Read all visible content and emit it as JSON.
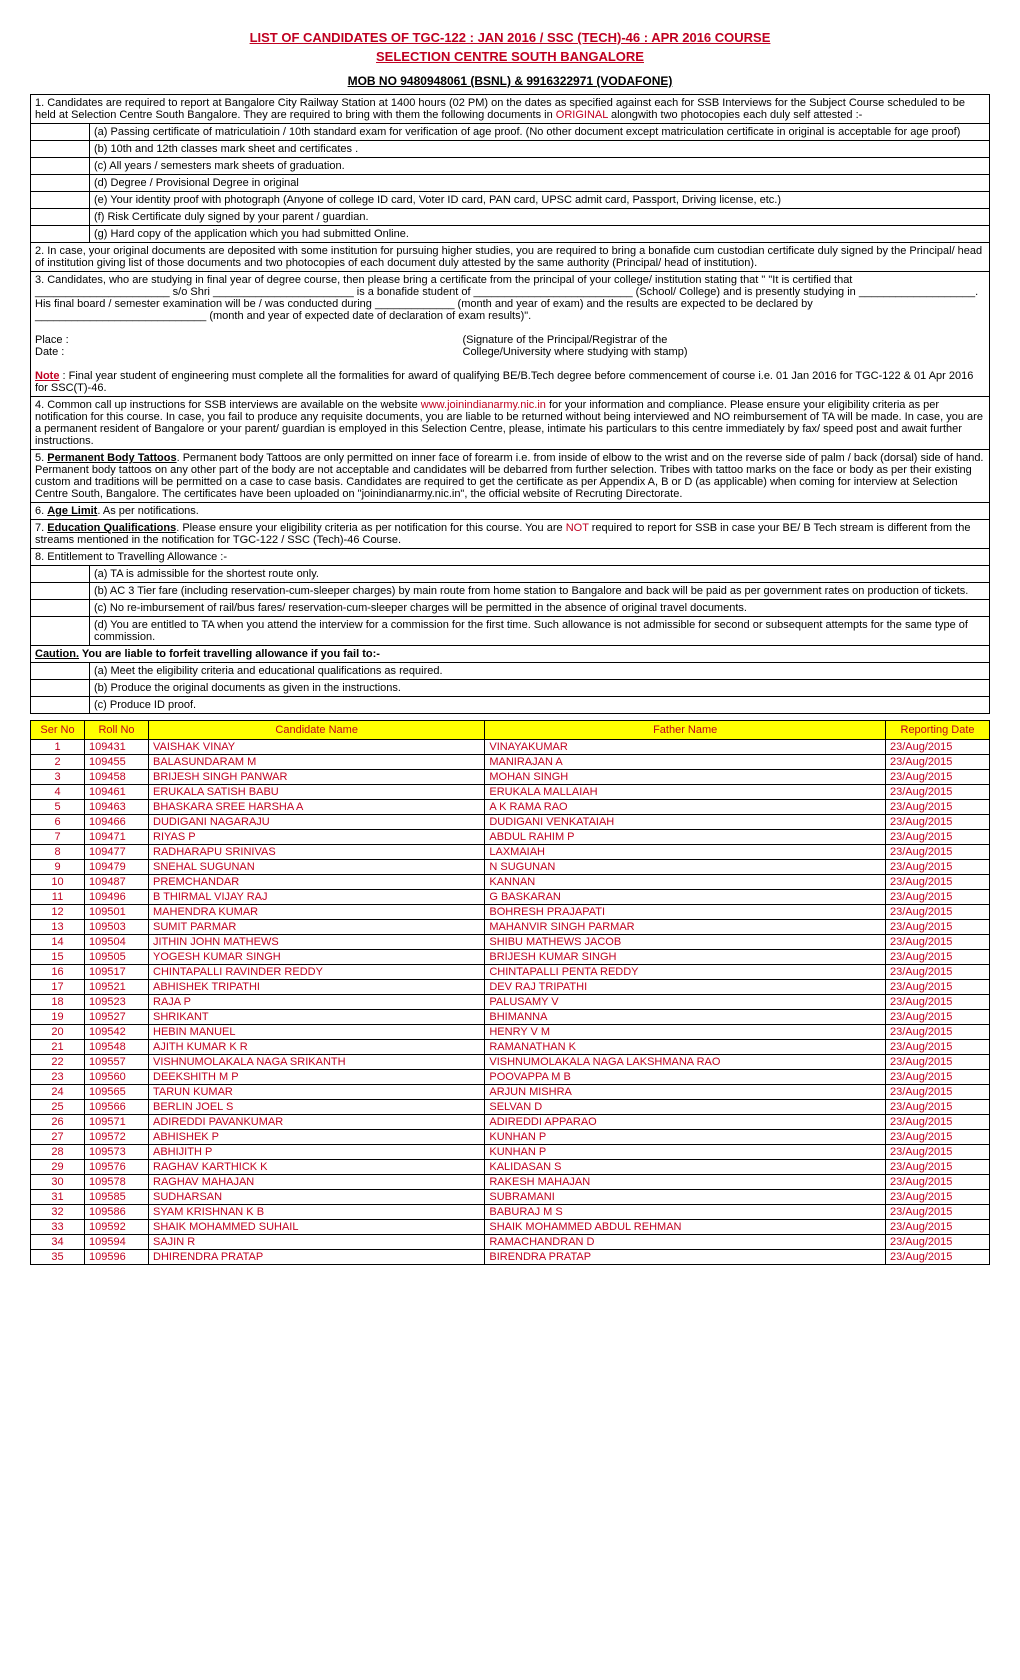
{
  "header": {
    "title": "LIST OF CANDIDATES OF TGC-122 : JAN 2016 / SSC (TECH)-46 : APR 2016 COURSE",
    "subtitle": "SELECTION CENTRE SOUTH BANGALORE",
    "mob": "MOB NO 9480948061 (BSNL) & 9916322971 (VODAFONE)"
  },
  "instr": {
    "p1_pre": "1.    Candidates are required to report at Bangalore City Railway Station at 1400 hours (02 PM) on the dates as specified against each for SSB Interviews for the Subject Course scheduled to be held at Selection Centre South Bangalore. They are required to bring with them the following documents in ",
    "p1_red": "ORIGINAL",
    "p1_post": " alongwith two photocopies each duly self attested :-",
    "docs": {
      "a": "(a)    Passing certificate of matriculatioin / 10th standard exam for verification of age proof.  (No other document except matriculation certificate in original is acceptable for age proof)",
      "b": "(b)    10th and 12th classes mark sheet and certificates .",
      "c": "(c)    All years / semesters mark sheets of graduation.",
      "d": "(d)    Degree / Provisional Degree in original",
      "e": "(e)    Your identity proof with photograph (Anyone of college ID card, Voter ID card, PAN card, UPSC admit card, Passport, Driving license, etc.)",
      "f": "(f)     Risk Certificate duly signed by your parent / guardian.",
      "g": "(g)    Hard copy of the application which you had submitted Online."
    },
    "p2": "2.     In case, your original documents are deposited with some institution for pursuing higher studies, you are required to bring a bonafide cum custodian certificate duly signed by the Principal/ head of institution giving list of those documents and two photocopies of each document duly attested by the same authority (Principal/ head of institution).",
    "p3": "3.  Candidates, who are studying in final year of degree course, then please bring a certificate from the principal of your college/ institution stating that \" \"It is certified that ______________________ s/o Shri _______________________ is a bonafide student of __________________________ (School/ College) and is presently studying in ___________________. His final board / semester examination will be / was conducted during _____________ (month and year of exam) and the results are expected to be declared by ____________________________ (month and year of expected date of declaration of exam results)\".",
    "place": "Place  :",
    "date": "Date   :",
    "sig1": "(Signature of the Principal/Registrar of the",
    "sig2": "College/University where studying with stamp)",
    "note_pre": "Note",
    "note_txt": " : Final year student of engineering must complete all the formalities for award of qualifying BE/B.Tech degree before commencement of course i.e. 01 Jan 2016  for TGC-122 & 01 Apr 2016 for SSC(T)-46.",
    "p4_pre": "4.     Common call up instructions for SSB interviews are available on the website ",
    "p4_link": "www.joinindianarmy.nic.in",
    "p4_post": " for your information and compliance. Please ensure your eligibility criteria as per notification for this course. In case, you fail to produce any requisite documents, you are liable to be returned without being interviewed and NO reimbursement of TA will be made. In case, you are a permanent resident of Bangalore or your parent/ guardian is employed in this Selection Centre, please, intimate his particulars to this centre immediately by fax/ speed post and await further instructions.",
    "p5_pre": "5.     ",
    "p5_head": "Permanent Body Tattoos",
    "p5_txt": ".    Permanent body Tattoos are only permitted on inner face of forearm i.e. from inside of elbow to the wrist and on the reverse side of palm / back (dorsal) side of hand. Permanent body tattoos on any other part of the body are not acceptable and candidates will be debarred from further selection. Tribes with tattoo marks on the face or body as per their existing custom and traditions will be permitted on a case to case basis. Candidates are required to get the certificate as per Appendix A, B or D (as applicable) when coming for interview at Selection Centre South, Bangalore. The certificates have been uploaded on \"joinindianarmy.nic.in\", the official website of Recruting Directorate.",
    "p6_pre": "6.  ",
    "p6_head": "Age Limit",
    "p6_txt": ".        As per notifications.",
    "p7_pre": "7.  ",
    "p7_head": "Education Qualifications",
    "p7_mid": ".      Please ensure your eligibility criteria as per notification for this course. You are ",
    "p7_not": "NOT",
    "p7_post": " required to report for SSB in case your BE/ B Tech stream is different from the streams mentioned in the notification for TGC-122 / SSC (Tech)-46 Course.",
    "p8": "8.     Entitlement to Travelling Allowance :-",
    "ta": {
      "a": "(a)       TA is admissible for the shortest route only.",
      "b": "(b)       AC 3 Tier fare (including reservation-cum-sleeper charges) by main route from home station to  Bangalore and back will be paid as per government rates on production of tickets.",
      "c": "(c)       No re-imbursement of rail/bus fares/ reservation-cum-sleeper charges will be permitted in the absence of original travel documents.",
      "d": "(d) You are entitled to TA when you attend the interview for a commission for the first  time. Such allowance is not admissible for second or subsequent attempts for the same  type of commission."
    },
    "caution_pre": "Caution.",
    "caution_txt": "           You are liable to forfeit travelling allowance if you fail to:-",
    "cau": {
      "a": "(a)          Meet the eligibility criteria and educational qualifications as required.",
      "b": "(b)          Produce the original documents as given in the instructions.",
      "c": "(c)          Produce ID proof."
    }
  },
  "table": {
    "headers": {
      "sn": "Ser No",
      "rn": "Roll No",
      "cn": "Candidate Name",
      "fn": "Father Name",
      "rd": "Reporting Date"
    },
    "rows": [
      {
        "sn": "1",
        "rn": "109431",
        "cn": "VAISHAK VINAY",
        "fn": "VINAYAKUMAR",
        "rd": "23/Aug/2015"
      },
      {
        "sn": "2",
        "rn": "109455",
        "cn": "BALASUNDARAM M",
        "fn": "MANIRAJAN A",
        "rd": "23/Aug/2015"
      },
      {
        "sn": "3",
        "rn": "109458",
        "cn": "BRIJESH SINGH PANWAR",
        "fn": "MOHAN SINGH",
        "rd": "23/Aug/2015"
      },
      {
        "sn": "4",
        "rn": "109461",
        "cn": "ERUKALA SATISH BABU",
        "fn": "ERUKALA MALLAIAH",
        "rd": "23/Aug/2015"
      },
      {
        "sn": "5",
        "rn": "109463",
        "cn": "BHASKARA SREE HARSHA A",
        "fn": "A K RAMA RAO",
        "rd": "23/Aug/2015"
      },
      {
        "sn": "6",
        "rn": "109466",
        "cn": "DUDIGANI NAGARAJU",
        "fn": "DUDIGANI VENKATAIAH",
        "rd": "23/Aug/2015"
      },
      {
        "sn": "7",
        "rn": "109471",
        "cn": "RIYAS P",
        "fn": "ABDUL RAHIM P",
        "rd": "23/Aug/2015"
      },
      {
        "sn": "8",
        "rn": "109477",
        "cn": "RADHARAPU SRINIVAS",
        "fn": "LAXMAIAH",
        "rd": "23/Aug/2015"
      },
      {
        "sn": "9",
        "rn": "109479",
        "cn": "SNEHAL SUGUNAN",
        "fn": "N SUGUNAN",
        "rd": "23/Aug/2015"
      },
      {
        "sn": "10",
        "rn": "109487",
        "cn": "PREMCHANDAR",
        "fn": "KANNAN",
        "rd": "23/Aug/2015"
      },
      {
        "sn": "11",
        "rn": "109496",
        "cn": "B THIRMAL VIJAY RAJ",
        "fn": "G BASKARAN",
        "rd": "23/Aug/2015"
      },
      {
        "sn": "12",
        "rn": "109501",
        "cn": "MAHENDRA KUMAR",
        "fn": "BOHRESH PRAJAPATI",
        "rd": "23/Aug/2015"
      },
      {
        "sn": "13",
        "rn": "109503",
        "cn": "SUMIT PARMAR",
        "fn": "MAHANVIR SINGH PARMAR",
        "rd": "23/Aug/2015"
      },
      {
        "sn": "14",
        "rn": "109504",
        "cn": "JITHIN JOHN MATHEWS",
        "fn": "SHIBU MATHEWS JACOB",
        "rd": "23/Aug/2015"
      },
      {
        "sn": "15",
        "rn": "109505",
        "cn": "YOGESH KUMAR SINGH",
        "fn": "BRIJESH KUMAR SINGH",
        "rd": "23/Aug/2015"
      },
      {
        "sn": "16",
        "rn": "109517",
        "cn": "CHINTAPALLI RAVINDER REDDY",
        "fn": "CHINTAPALLI PENTA REDDY",
        "rd": "23/Aug/2015"
      },
      {
        "sn": "17",
        "rn": "109521",
        "cn": "ABHISHEK TRIPATHI",
        "fn": "DEV RAJ TRIPATHI",
        "rd": "23/Aug/2015"
      },
      {
        "sn": "18",
        "rn": "109523",
        "cn": "RAJA P",
        "fn": "PALUSAMY V",
        "rd": "23/Aug/2015"
      },
      {
        "sn": "19",
        "rn": "109527",
        "cn": "SHRIKANT",
        "fn": "BHIMANNA",
        "rd": "23/Aug/2015"
      },
      {
        "sn": "20",
        "rn": "109542",
        "cn": "HEBIN MANUEL",
        "fn": "HENRY V M",
        "rd": "23/Aug/2015"
      },
      {
        "sn": "21",
        "rn": "109548",
        "cn": "AJITH KUMAR K R",
        "fn": "RAMANATHAN K",
        "rd": "23/Aug/2015"
      },
      {
        "sn": "22",
        "rn": "109557",
        "cn": "VISHNUMOLAKALA NAGA SRIKANTH",
        "fn": "VISHNUMOLAKALA NAGA LAKSHMANA RAO",
        "rd": "23/Aug/2015"
      },
      {
        "sn": "23",
        "rn": "109560",
        "cn": "DEEKSHITH M P",
        "fn": "POOVAPPA M B",
        "rd": "23/Aug/2015"
      },
      {
        "sn": "24",
        "rn": "109565",
        "cn": "TARUN KUMAR",
        "fn": "ARJUN MISHRA",
        "rd": "23/Aug/2015"
      },
      {
        "sn": "25",
        "rn": "109566",
        "cn": "BERLIN JOEL S",
        "fn": "SELVAN D",
        "rd": "23/Aug/2015"
      },
      {
        "sn": "26",
        "rn": "109571",
        "cn": "ADIREDDI PAVANKUMAR",
        "fn": "ADIREDDI APPARAO",
        "rd": "23/Aug/2015"
      },
      {
        "sn": "27",
        "rn": "109572",
        "cn": "ABHISHEK P",
        "fn": "KUNHAN P",
        "rd": "23/Aug/2015"
      },
      {
        "sn": "28",
        "rn": "109573",
        "cn": "ABHIJITH P",
        "fn": "KUNHAN P",
        "rd": "23/Aug/2015"
      },
      {
        "sn": "29",
        "rn": "109576",
        "cn": "RAGHAV KARTHICK K",
        "fn": "KALIDASAN S",
        "rd": "23/Aug/2015"
      },
      {
        "sn": "30",
        "rn": "109578",
        "cn": "RAGHAV MAHAJAN",
        "fn": "RAKESH MAHAJAN",
        "rd": "23/Aug/2015"
      },
      {
        "sn": "31",
        "rn": "109585",
        "cn": "SUDHARSAN",
        "fn": "SUBRAMANI",
        "rd": "23/Aug/2015"
      },
      {
        "sn": "32",
        "rn": "109586",
        "cn": "SYAM KRISHNAN K B",
        "fn": "BABURAJ M S",
        "rd": "23/Aug/2015"
      },
      {
        "sn": "33",
        "rn": "109592",
        "cn": "SHAIK MOHAMMED SUHAIL",
        "fn": "SHAIK MOHAMMED ABDUL REHMAN",
        "rd": "23/Aug/2015"
      },
      {
        "sn": "34",
        "rn": "109594",
        "cn": "SAJIN R",
        "fn": "RAMACHANDRAN D",
        "rd": "23/Aug/2015"
      },
      {
        "sn": "35",
        "rn": "109596",
        "cn": "DHIRENDRA PRATAP",
        "fn": "BIRENDRA PRATAP",
        "rd": "23/Aug/2015"
      }
    ]
  }
}
